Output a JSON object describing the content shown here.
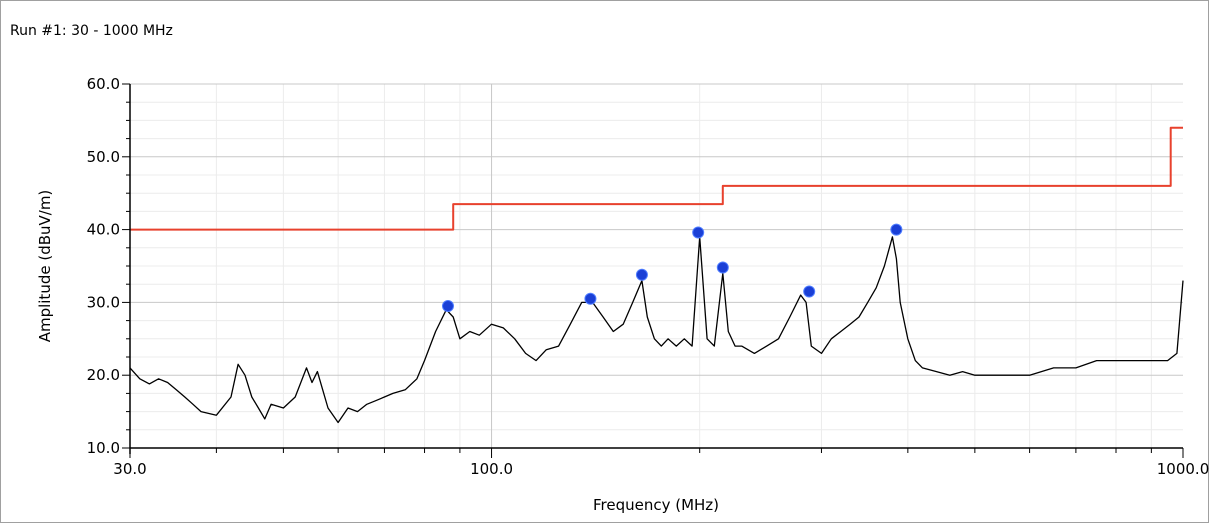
{
  "panel": {
    "title": "Run #1: 30 - 1000 MHz"
  },
  "chart_data": {
    "type": "line",
    "x_scale": "log",
    "xlabel": "Frequency (MHz)",
    "ylabel": "Amplitude (dBuV/m)",
    "xlim": [
      30,
      1000
    ],
    "ylim": [
      10,
      60
    ],
    "x_tick_labels": [
      "30.0",
      "100.0",
      "1000.0"
    ],
    "y_tick_labels": [
      "10.0",
      "20.0",
      "30.0",
      "40.0",
      "50.0",
      "60.0"
    ],
    "grid": true,
    "series": [
      {
        "color": "#e8412d",
        "step": true,
        "x": [
          30,
          88,
          88,
          216,
          216,
          960,
          960,
          1000
        ],
        "y": [
          40,
          40,
          43.5,
          43.5,
          46,
          46,
          54,
          54
        ]
      },
      {
        "color": "#000000",
        "x": [
          30,
          31,
          32,
          33,
          34,
          35,
          36,
          37,
          38,
          40,
          42,
          43,
          44,
          45,
          46,
          47,
          48,
          50,
          52,
          54,
          55,
          56,
          57,
          58,
          60,
          62,
          64,
          66,
          68,
          70,
          72,
          75,
          78,
          80,
          83,
          86,
          88,
          90,
          93,
          96,
          100,
          104,
          108,
          112,
          116,
          120,
          125,
          130,
          135,
          140,
          145,
          150,
          155,
          160,
          165,
          168,
          172,
          176,
          180,
          185,
          190,
          195,
          200,
          205,
          210,
          216,
          220,
          225,
          230,
          240,
          250,
          260,
          270,
          280,
          285,
          290,
          300,
          310,
          320,
          330,
          340,
          350,
          360,
          370,
          380,
          385,
          390,
          400,
          410,
          420,
          440,
          460,
          480,
          500,
          550,
          600,
          650,
          700,
          750,
          800,
          850,
          900,
          950,
          980,
          1000
        ],
        "y": [
          21,
          19.5,
          18.8,
          19.5,
          19,
          18,
          17,
          16,
          15,
          14.5,
          17,
          21.5,
          20,
          17,
          15.5,
          14,
          16,
          15.5,
          17,
          21,
          19,
          20.5,
          18,
          15.5,
          13.5,
          15.5,
          15,
          16,
          16.5,
          17,
          17.5,
          18,
          19.5,
          22,
          26,
          29,
          28,
          25,
          26,
          25.5,
          27,
          26.5,
          25,
          23,
          22,
          23.5,
          24,
          27,
          30,
          30,
          28,
          26,
          27,
          30,
          33,
          28,
          25,
          24,
          25,
          24,
          25,
          24,
          39,
          25,
          24,
          34,
          26,
          24,
          24,
          23,
          24,
          25,
          28,
          31,
          30,
          24,
          23,
          25,
          26,
          27,
          28,
          30,
          32,
          35,
          39,
          36,
          30,
          25,
          22,
          21,
          20.5,
          20,
          20.5,
          20,
          20,
          20,
          21,
          21,
          22,
          22,
          22,
          22,
          22,
          23,
          33
        ]
      }
    ],
    "markers": {
      "color": "#1a3fd6",
      "points": [
        {
          "x": 86.5,
          "y": 29.5
        },
        {
          "x": 139,
          "y": 30.5
        },
        {
          "x": 165,
          "y": 33.8
        },
        {
          "x": 199,
          "y": 39.6
        },
        {
          "x": 216,
          "y": 34.8
        },
        {
          "x": 288,
          "y": 31.5
        },
        {
          "x": 385,
          "y": 40
        }
      ]
    }
  }
}
